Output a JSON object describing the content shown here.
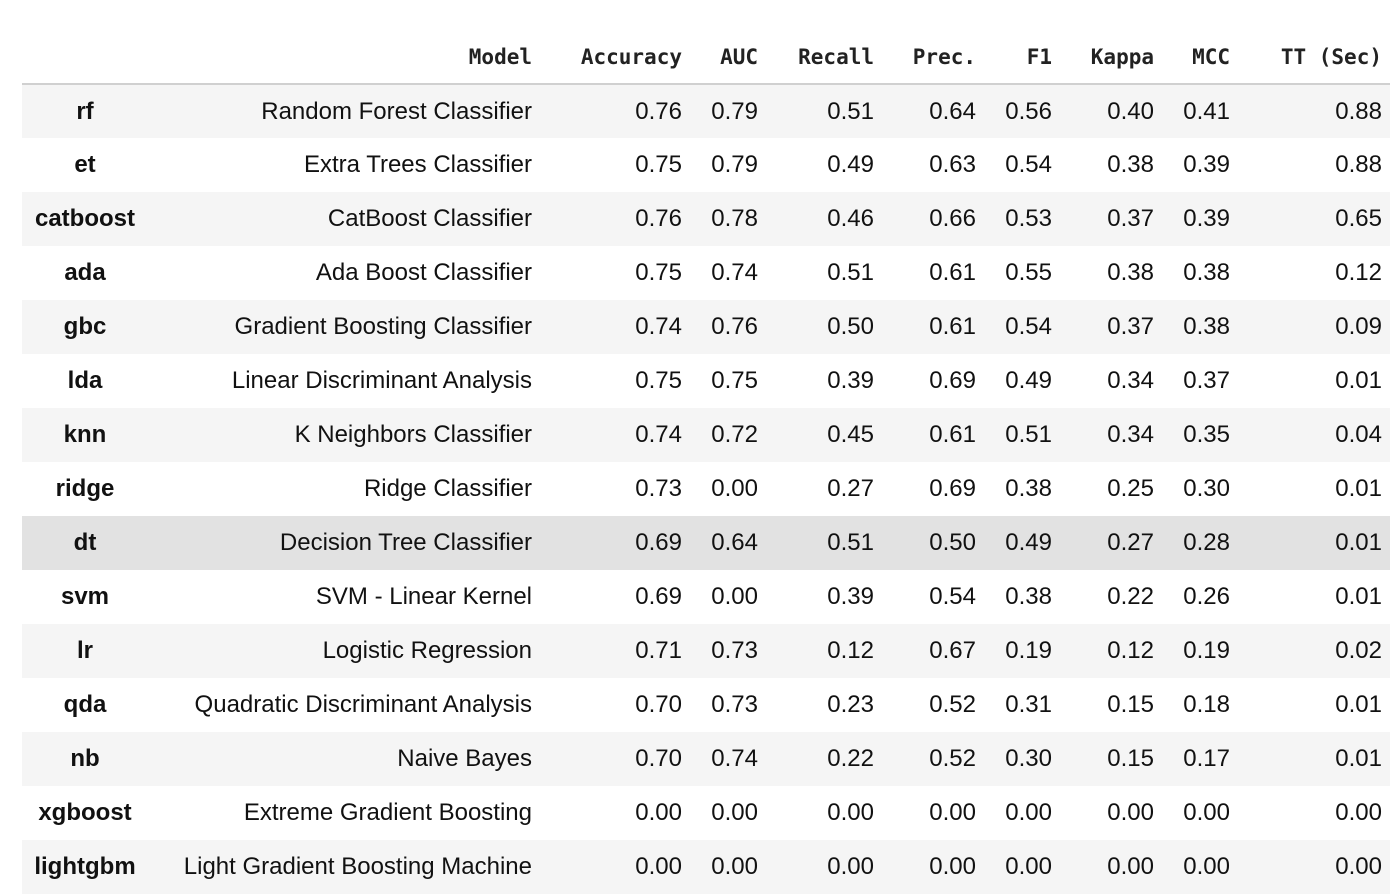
{
  "table": {
    "columns": [
      "",
      "Model",
      "Accuracy",
      "AUC",
      "Recall",
      "Prec.",
      "F1",
      "Kappa",
      "MCC",
      "TT (Sec)"
    ],
    "rows": [
      {
        "index": "rf",
        "values": [
          "Random Forest Classifier",
          "0.76",
          "0.79",
          "0.51",
          "0.64",
          "0.56",
          "0.40",
          "0.41",
          "0.88"
        ]
      },
      {
        "index": "et",
        "values": [
          "Extra Trees Classifier",
          "0.75",
          "0.79",
          "0.49",
          "0.63",
          "0.54",
          "0.38",
          "0.39",
          "0.88"
        ]
      },
      {
        "index": "catboost",
        "values": [
          "CatBoost Classifier",
          "0.76",
          "0.78",
          "0.46",
          "0.66",
          "0.53",
          "0.37",
          "0.39",
          "0.65"
        ]
      },
      {
        "index": "ada",
        "values": [
          "Ada Boost Classifier",
          "0.75",
          "0.74",
          "0.51",
          "0.61",
          "0.55",
          "0.38",
          "0.38",
          "0.12"
        ]
      },
      {
        "index": "gbc",
        "values": [
          "Gradient Boosting Classifier",
          "0.74",
          "0.76",
          "0.50",
          "0.61",
          "0.54",
          "0.37",
          "0.38",
          "0.09"
        ]
      },
      {
        "index": "lda",
        "values": [
          "Linear Discriminant Analysis",
          "0.75",
          "0.75",
          "0.39",
          "0.69",
          "0.49",
          "0.34",
          "0.37",
          "0.01"
        ]
      },
      {
        "index": "knn",
        "values": [
          "K Neighbors Classifier",
          "0.74",
          "0.72",
          "0.45",
          "0.61",
          "0.51",
          "0.34",
          "0.35",
          "0.04"
        ]
      },
      {
        "index": "ridge",
        "values": [
          "Ridge Classifier",
          "0.73",
          "0.00",
          "0.27",
          "0.69",
          "0.38",
          "0.25",
          "0.30",
          "0.01"
        ]
      },
      {
        "index": "dt",
        "values": [
          "Decision Tree Classifier",
          "0.69",
          "0.64",
          "0.51",
          "0.50",
          "0.49",
          "0.27",
          "0.28",
          "0.01"
        ],
        "highlighted": true
      },
      {
        "index": "svm",
        "values": [
          "SVM - Linear Kernel",
          "0.69",
          "0.00",
          "0.39",
          "0.54",
          "0.38",
          "0.22",
          "0.26",
          "0.01"
        ]
      },
      {
        "index": "lr",
        "values": [
          "Logistic Regression",
          "0.71",
          "0.73",
          "0.12",
          "0.67",
          "0.19",
          "0.12",
          "0.19",
          "0.02"
        ]
      },
      {
        "index": "qda",
        "values": [
          "Quadratic Discriminant Analysis",
          "0.70",
          "0.73",
          "0.23",
          "0.52",
          "0.31",
          "0.15",
          "0.18",
          "0.01"
        ]
      },
      {
        "index": "nb",
        "values": [
          "Naive Bayes",
          "0.70",
          "0.74",
          "0.22",
          "0.52",
          "0.30",
          "0.15",
          "0.17",
          "0.01"
        ]
      },
      {
        "index": "xgboost",
        "values": [
          "Extreme Gradient Boosting",
          "0.00",
          "0.00",
          "0.00",
          "0.00",
          "0.00",
          "0.00",
          "0.00",
          "0.00"
        ]
      },
      {
        "index": "lightgbm",
        "values": [
          "Light Gradient Boosting Machine",
          "0.00",
          "0.00",
          "0.00",
          "0.00",
          "0.00",
          "0.00",
          "0.00",
          "0.00"
        ]
      }
    ]
  },
  "colors": {
    "odd_row": "#f5f5f5",
    "even_row": "#ffffff",
    "highlight_row": "#e2e2e2",
    "header_rule": "#d0d0d0"
  }
}
